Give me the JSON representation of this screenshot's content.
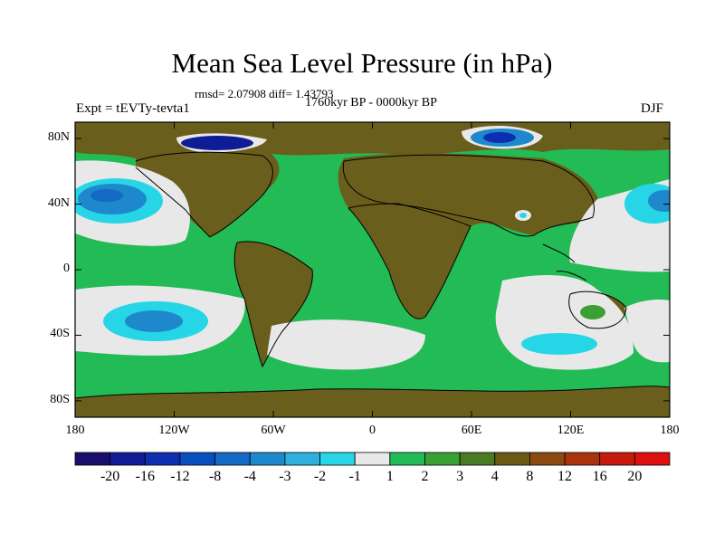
{
  "plot": {
    "title": "Mean Sea Level Pressure (in hPa)",
    "stats": "rmsd= 2.07908 diff= 1.43793",
    "period": "1760kyr BP - 0000kyr BP",
    "experiment": "Expt = tEVTy-tevta1",
    "season": "DJF"
  },
  "axes": {
    "lat_labels": [
      "80N",
      "40N",
      "0",
      "40S",
      "80S"
    ],
    "lat_values": [
      80,
      40,
      0,
      -40,
      -80
    ],
    "lon_labels": [
      "180",
      "120W",
      "60W",
      "0",
      "60E",
      "120E",
      "180"
    ],
    "lon_values": [
      -180,
      -120,
      -60,
      0,
      60,
      120,
      180
    ],
    "lat_range": [
      -90,
      90
    ],
    "lon_range": [
      -180,
      180
    ]
  },
  "colorbar": {
    "labels": [
      "-20",
      "-16",
      "-12",
      "-8",
      "-4",
      "-3",
      "-2",
      "-1",
      "1",
      "2",
      "3",
      "4",
      "8",
      "12",
      "16",
      "20"
    ],
    "colors": [
      "#1b0f6e",
      "#101c96",
      "#0c2fb0",
      "#0a4fbe",
      "#1469c4",
      "#1e88cc",
      "#2fb0dc",
      "#27d6e6",
      "#e8e8e8",
      "#22bb55",
      "#3aa033",
      "#4a7a22",
      "#6b5a14",
      "#8a4a10",
      "#a8330d",
      "#c61a0c",
      "#dd0f0f"
    ]
  },
  "field_colors": {
    "land": "#6a5e1c",
    "ocean": "#22bb55",
    "neutral": "#e8e8e8",
    "coast": "#000000"
  }
}
